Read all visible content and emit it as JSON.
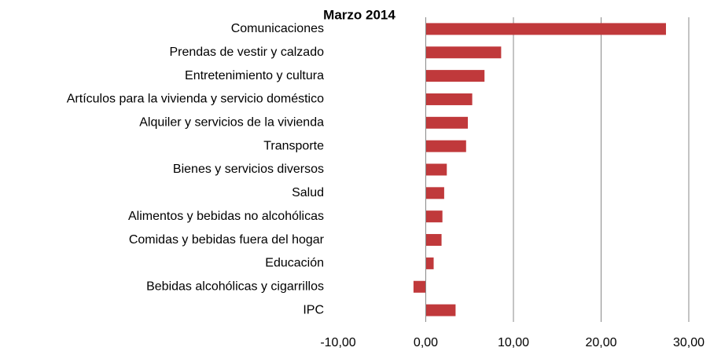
{
  "chart_data": {
    "type": "hbar",
    "title": "Marzo 2014",
    "categories": [
      "Comunicaciones",
      "Prendas de vestir y calzado",
      "Entretenimiento y cultura",
      "Artículos para la vivienda y servicio doméstico",
      "Alquiler y servicios de la vivienda",
      "Transporte",
      "Bienes y servicios diversos",
      "Salud",
      "Alimentos y bebidas no alcohólicas",
      "Comidas y bebidas fuera del hogar",
      "Educación",
      "Bebidas alcohólicas y cigarrillos",
      "IPC"
    ],
    "values": [
      27.4,
      8.6,
      6.7,
      5.3,
      4.8,
      4.6,
      2.4,
      2.1,
      1.9,
      1.8,
      0.9,
      -1.4,
      3.4
    ],
    "color": "#c0393b",
    "xlim": [
      -10,
      30
    ],
    "xticks": [
      {
        "value": -10,
        "label": "-10,00"
      },
      {
        "value": 0,
        "label": "0,00"
      },
      {
        "value": 10,
        "label": "10,00"
      },
      {
        "value": 20,
        "label": "20,00"
      },
      {
        "value": 30,
        "label": "30,00"
      }
    ],
    "grid": true
  }
}
